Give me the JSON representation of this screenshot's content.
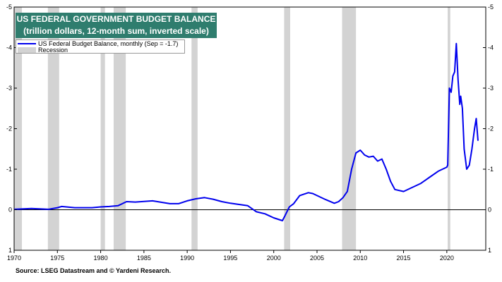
{
  "header": {
    "title_line1": "US FEDERAL GOVERNMENT BUDGET BALANCE",
    "title_line2": "(trillion dollars, 12-month sum, inverted scale)"
  },
  "legend": {
    "series_label": "US Federal Budget Balance, monthly (Sep = -1.7)",
    "recession_label": "Recession"
  },
  "footer": {
    "source": "Source: LSEG Datastream and © Yardeni Research."
  },
  "colors": {
    "title_bg": "#2f7d6e",
    "series": "#0000ee",
    "recession": "#d3d3d3"
  },
  "chart_data": {
    "type": "line",
    "title": "US FEDERAL GOVERNMENT BUDGET BALANCE",
    "subtitle": "(trillion dollars, 12-month sum, inverted scale)",
    "y_inverted": true,
    "ylim": [
      1,
      -5
    ],
    "xlim": [
      1970,
      2024.5
    ],
    "x_ticks": [
      1970,
      1975,
      1980,
      1985,
      1990,
      1995,
      2000,
      2005,
      2010,
      2015,
      2020
    ],
    "y_ticks": [
      -5,
      -4,
      -3,
      -2,
      -1,
      0,
      1
    ],
    "y_tick_labels": [
      "-5",
      "-4",
      "-3",
      "-2",
      "-1",
      "0",
      "1"
    ],
    "zero_line": true,
    "recessions": [
      [
        1969.9,
        1970.9
      ],
      [
        1973.9,
        1975.2
      ],
      [
        1980.0,
        1980.5
      ],
      [
        1981.5,
        1982.9
      ],
      [
        1990.5,
        1991.2
      ],
      [
        2001.2,
        2001.9
      ],
      [
        2007.9,
        2009.5
      ],
      [
        2020.1,
        2020.4
      ]
    ],
    "series": [
      {
        "name": "US Federal Budget Balance, monthly (Sep = -1.7)",
        "x": [
          1970,
          1972,
          1974,
          1975,
          1975.5,
          1977,
          1979,
          1980,
          1981,
          1982,
          1983,
          1984,
          1986,
          1988,
          1989,
          1990,
          1991,
          1992,
          1993,
          1994,
          1995,
          1997,
          1998,
          1999,
          2000,
          2001,
          2001.3,
          2001.8,
          2002.3,
          2003,
          2004,
          2004.5,
          2005,
          2006,
          2007,
          2007.5,
          2008,
          2008.5,
          2009,
          2009.5,
          2010,
          2010.5,
          2011,
          2011.5,
          2012,
          2012.5,
          2013,
          2013.5,
          2014,
          2015,
          2016,
          2017,
          2018,
          2019,
          2020,
          2020.1,
          2020.3,
          2020.5,
          2020.7,
          2020.9,
          2021.1,
          2021.3,
          2021.5,
          2021.6,
          2021.8,
          2022,
          2022.3,
          2022.6,
          2022.9,
          2023.2,
          2023.4,
          2023.6
        ],
        "values": [
          -0.01,
          -0.03,
          -0.01,
          -0.05,
          -0.08,
          -0.05,
          -0.05,
          -0.07,
          -0.08,
          -0.1,
          -0.2,
          -0.19,
          -0.22,
          -0.15,
          -0.15,
          -0.22,
          -0.27,
          -0.3,
          -0.26,
          -0.2,
          -0.16,
          -0.1,
          0.05,
          0.1,
          0.2,
          0.27,
          0.15,
          -0.07,
          -0.15,
          -0.35,
          -0.42,
          -0.4,
          -0.35,
          -0.25,
          -0.16,
          -0.2,
          -0.3,
          -0.45,
          -1.0,
          -1.4,
          -1.47,
          -1.35,
          -1.3,
          -1.32,
          -1.2,
          -1.25,
          -1.0,
          -0.7,
          -0.5,
          -0.45,
          -0.55,
          -0.65,
          -0.8,
          -0.95,
          -1.05,
          -1.1,
          -3.0,
          -2.9,
          -3.3,
          -3.4,
          -4.1,
          -3.2,
          -2.6,
          -2.8,
          -2.5,
          -1.5,
          -1.0,
          -1.1,
          -1.5,
          -2.0,
          -2.25,
          -1.7
        ]
      }
    ],
    "annotations": [
      "Sep = -1.7"
    ]
  }
}
